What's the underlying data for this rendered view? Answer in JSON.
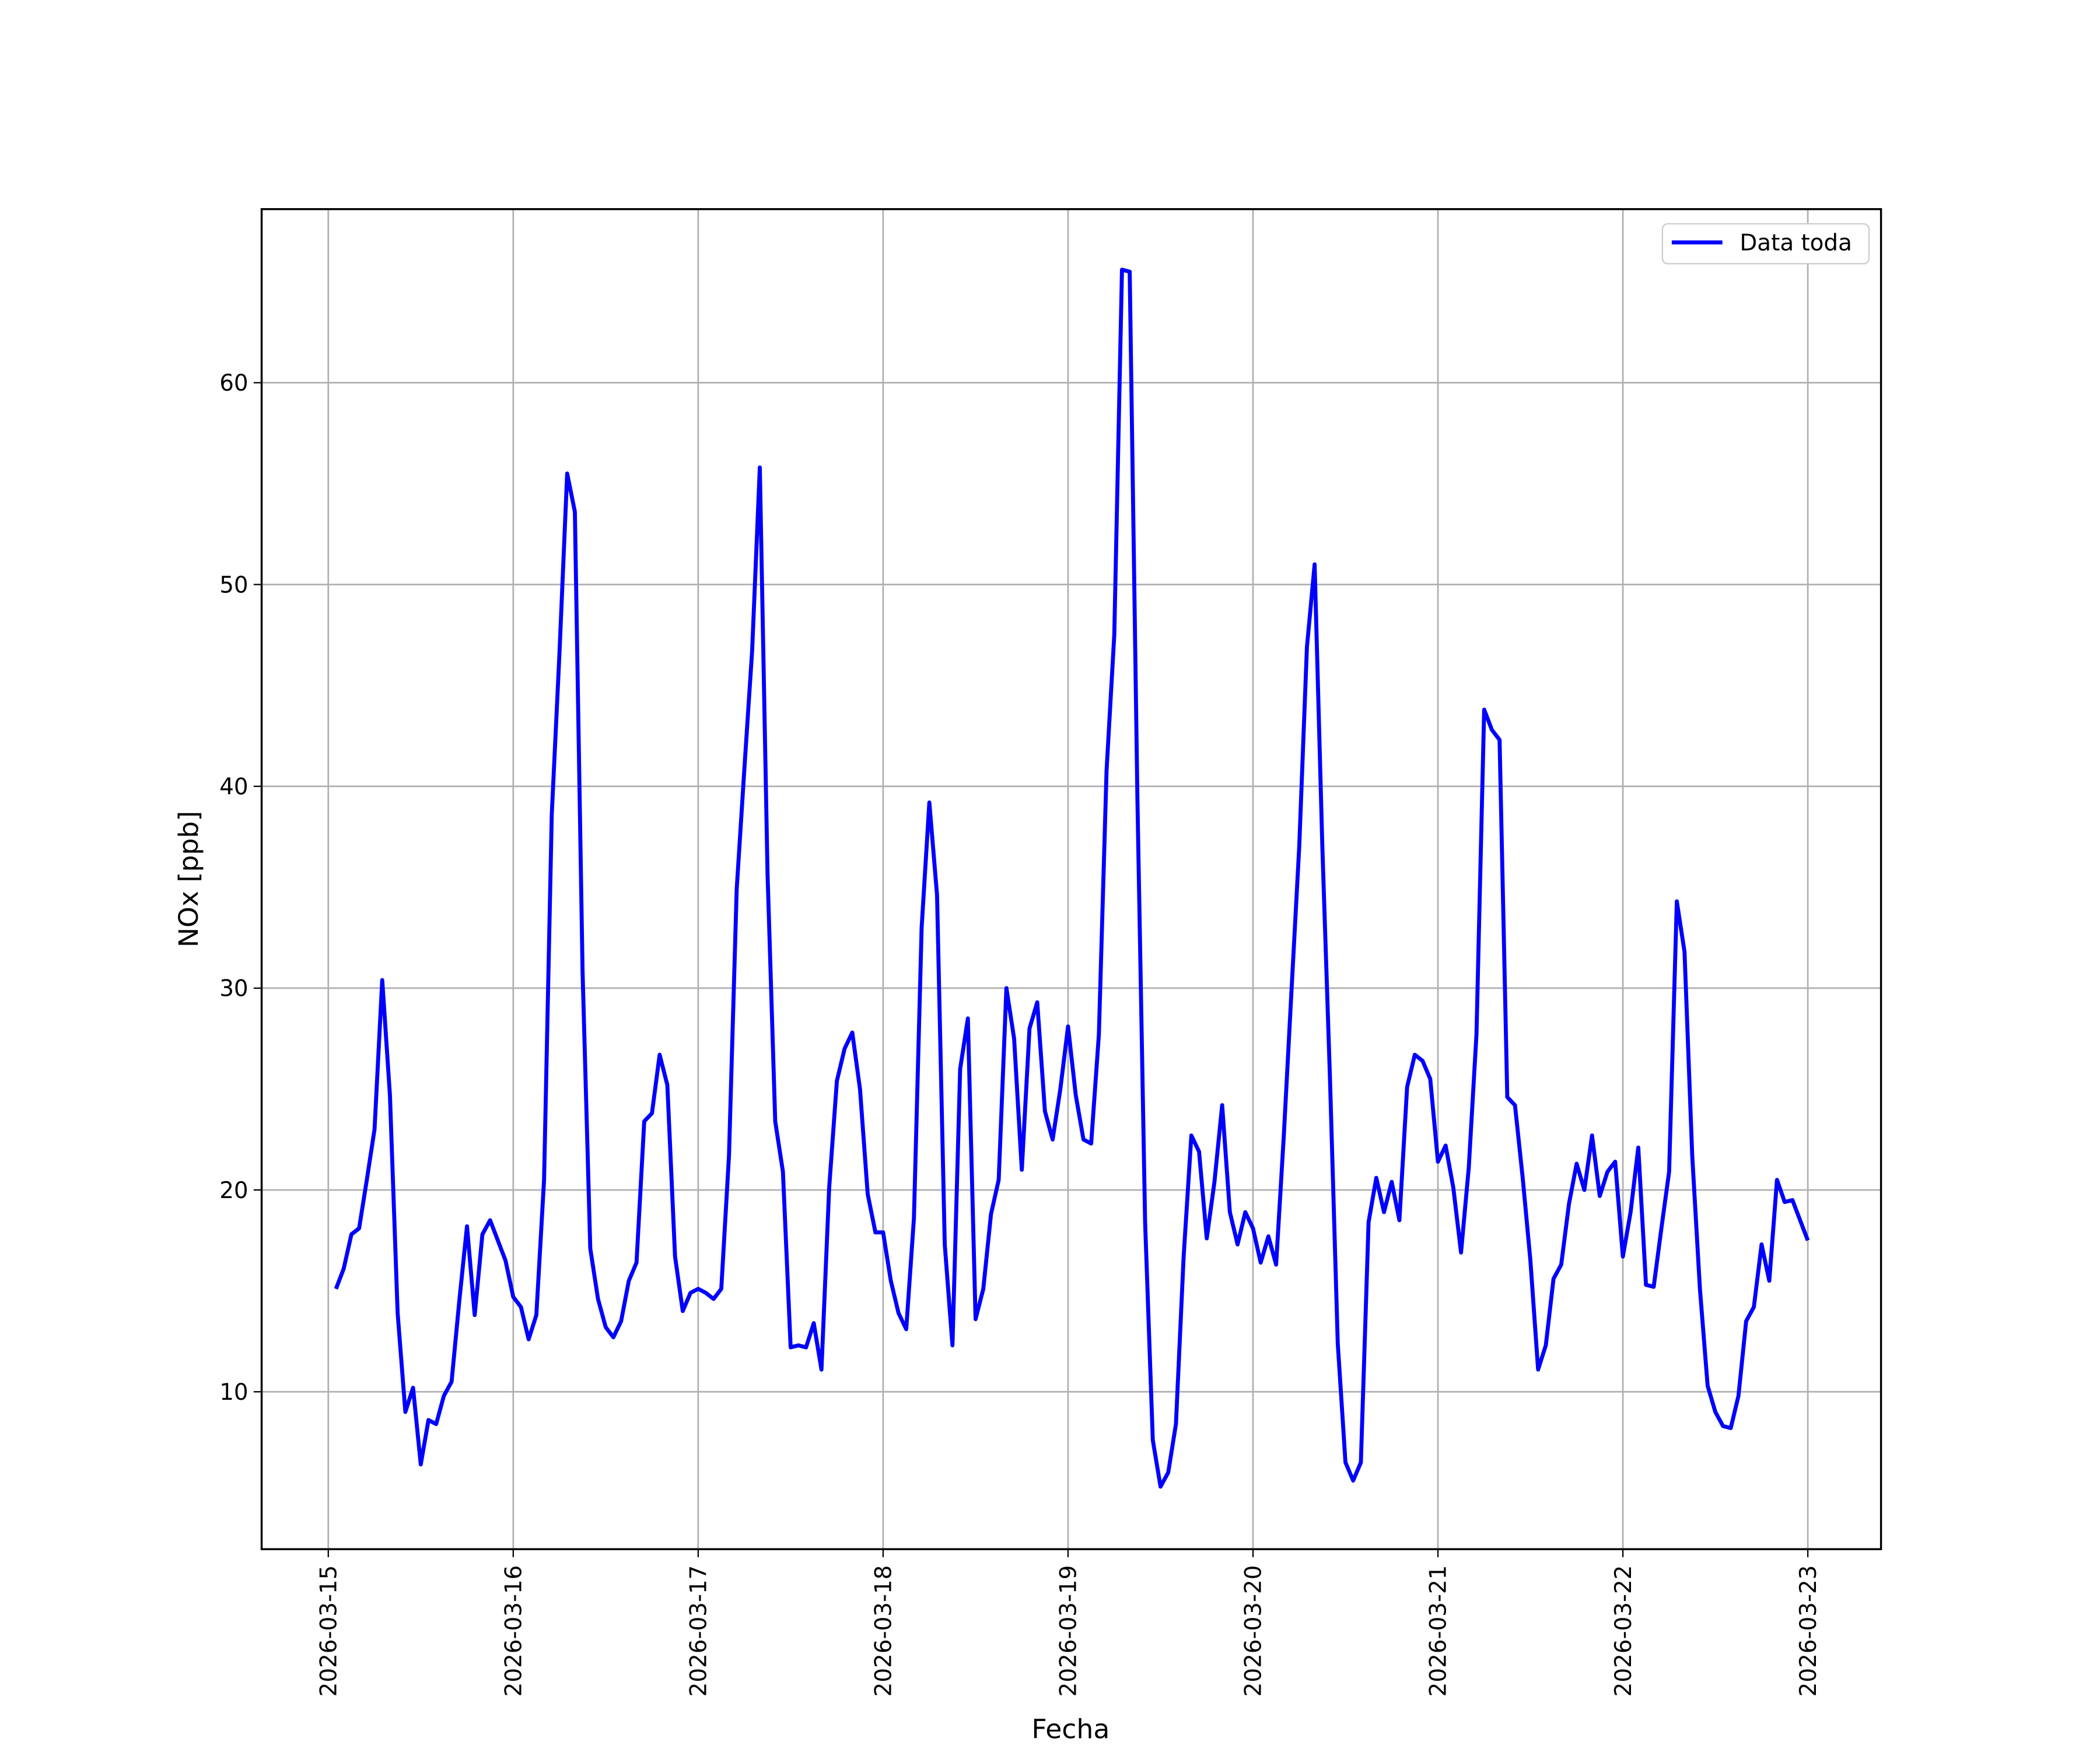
{
  "chart_data": {
    "type": "line",
    "x_label": "Fecha",
    "y_label": "NOx [ppb]",
    "x": [
      "2026-03-15 01:00",
      "2026-03-15 02:00",
      "2026-03-15 03:00",
      "2026-03-15 04:00",
      "2026-03-15 05:00",
      "2026-03-15 06:00",
      "2026-03-15 07:00",
      "2026-03-15 08:00",
      "2026-03-15 09:00",
      "2026-03-15 10:00",
      "2026-03-15 11:00",
      "2026-03-15 12:00",
      "2026-03-15 13:00",
      "2026-03-15 14:00",
      "2026-03-15 15:00",
      "2026-03-15 16:00",
      "2026-03-15 17:00",
      "2026-03-15 18:00",
      "2026-03-15 19:00",
      "2026-03-15 20:00",
      "2026-03-15 21:00",
      "2026-03-15 22:00",
      "2026-03-15 23:00",
      "2026-03-16 00:00",
      "2026-03-16 01:00",
      "2026-03-16 02:00",
      "2026-03-16 03:00",
      "2026-03-16 04:00",
      "2026-03-16 05:00",
      "2026-03-16 06:00",
      "2026-03-16 07:00",
      "2026-03-16 08:00",
      "2026-03-16 09:00",
      "2026-03-16 10:00",
      "2026-03-16 11:00",
      "2026-03-16 12:00",
      "2026-03-16 13:00",
      "2026-03-16 14:00",
      "2026-03-16 15:00",
      "2026-03-16 16:00",
      "2026-03-16 17:00",
      "2026-03-16 18:00",
      "2026-03-16 19:00",
      "2026-03-16 20:00",
      "2026-03-16 21:00",
      "2026-03-16 22:00",
      "2026-03-16 23:00",
      "2026-03-17 00:00",
      "2026-03-17 01:00",
      "2026-03-17 02:00",
      "2026-03-17 03:00",
      "2026-03-17 04:00",
      "2026-03-17 05:00",
      "2026-03-17 06:00",
      "2026-03-17 07:00",
      "2026-03-17 08:00",
      "2026-03-17 09:00",
      "2026-03-17 10:00",
      "2026-03-17 11:00",
      "2026-03-17 12:00",
      "2026-03-17 13:00",
      "2026-03-17 14:00",
      "2026-03-17 15:00",
      "2026-03-17 16:00",
      "2026-03-17 17:00",
      "2026-03-17 18:00",
      "2026-03-17 19:00",
      "2026-03-17 20:00",
      "2026-03-17 21:00",
      "2026-03-17 22:00",
      "2026-03-17 23:00",
      "2026-03-18 00:00",
      "2026-03-18 01:00",
      "2026-03-18 02:00",
      "2026-03-18 03:00",
      "2026-03-18 04:00",
      "2026-03-18 05:00",
      "2026-03-18 06:00",
      "2026-03-18 07:00",
      "2026-03-18 08:00",
      "2026-03-18 09:00",
      "2026-03-18 10:00",
      "2026-03-18 11:00",
      "2026-03-18 12:00",
      "2026-03-18 13:00",
      "2026-03-18 14:00",
      "2026-03-18 15:00",
      "2026-03-18 16:00",
      "2026-03-18 17:00",
      "2026-03-18 18:00",
      "2026-03-18 19:00",
      "2026-03-18 20:00",
      "2026-03-18 21:00",
      "2026-03-18 22:00",
      "2026-03-18 23:00",
      "2026-03-19 00:00",
      "2026-03-19 01:00",
      "2026-03-19 02:00",
      "2026-03-19 03:00",
      "2026-03-19 04:00",
      "2026-03-19 05:00",
      "2026-03-19 06:00",
      "2026-03-19 07:00",
      "2026-03-19 08:00",
      "2026-03-19 09:00",
      "2026-03-19 10:00",
      "2026-03-19 11:00",
      "2026-03-19 12:00",
      "2026-03-19 13:00",
      "2026-03-19 14:00",
      "2026-03-19 15:00",
      "2026-03-19 16:00",
      "2026-03-19 17:00",
      "2026-03-19 18:00",
      "2026-03-19 19:00",
      "2026-03-19 20:00",
      "2026-03-19 21:00",
      "2026-03-19 22:00",
      "2026-03-19 23:00",
      "2026-03-20 00:00",
      "2026-03-20 01:00",
      "2026-03-20 02:00",
      "2026-03-20 03:00",
      "2026-03-20 04:00",
      "2026-03-20 05:00",
      "2026-03-20 06:00",
      "2026-03-20 07:00",
      "2026-03-20 08:00",
      "2026-03-20 09:00",
      "2026-03-20 10:00",
      "2026-03-20 11:00",
      "2026-03-20 12:00",
      "2026-03-20 13:00",
      "2026-03-20 14:00",
      "2026-03-20 15:00",
      "2026-03-20 16:00",
      "2026-03-20 17:00",
      "2026-03-20 18:00",
      "2026-03-20 19:00",
      "2026-03-20 20:00",
      "2026-03-20 21:00",
      "2026-03-20 22:00",
      "2026-03-20 23:00",
      "2026-03-21 00:00",
      "2026-03-21 01:00",
      "2026-03-21 02:00",
      "2026-03-21 03:00",
      "2026-03-21 04:00",
      "2026-03-21 05:00",
      "2026-03-21 06:00",
      "2026-03-21 07:00",
      "2026-03-21 08:00",
      "2026-03-21 09:00",
      "2026-03-21 10:00",
      "2026-03-21 11:00",
      "2026-03-21 12:00",
      "2026-03-21 13:00",
      "2026-03-21 14:00",
      "2026-03-21 15:00",
      "2026-03-21 16:00",
      "2026-03-21 17:00",
      "2026-03-21 18:00",
      "2026-03-21 19:00",
      "2026-03-21 20:00",
      "2026-03-21 21:00",
      "2026-03-21 22:00",
      "2026-03-21 23:00",
      "2026-03-22 00:00",
      "2026-03-22 01:00",
      "2026-03-22 02:00",
      "2026-03-22 03:00",
      "2026-03-22 04:00",
      "2026-03-22 05:00",
      "2026-03-22 06:00",
      "2026-03-22 07:00",
      "2026-03-22 08:00",
      "2026-03-22 09:00",
      "2026-03-22 10:00",
      "2026-03-22 11:00",
      "2026-03-22 12:00",
      "2026-03-22 13:00",
      "2026-03-22 14:00",
      "2026-03-22 15:00",
      "2026-03-22 16:00",
      "2026-03-22 17:00",
      "2026-03-22 18:00",
      "2026-03-22 19:00",
      "2026-03-22 20:00",
      "2026-03-22 21:00",
      "2026-03-22 22:00",
      "2026-03-22 23:00",
      "2026-03-23 00:00"
    ],
    "series": [
      {
        "name": "Data toda",
        "color": "#0000ff",
        "values": [
          15.1,
          16.1,
          17.8,
          18.1,
          20.5,
          23.0,
          30.4,
          24.7,
          13.9,
          9.0,
          10.2,
          6.4,
          8.6,
          8.4,
          9.8,
          10.5,
          14.5,
          18.2,
          13.8,
          17.8,
          18.5,
          17.5,
          16.5,
          14.7,
          14.2,
          12.6,
          13.8,
          20.5,
          38.6,
          46.6,
          55.5,
          53.6,
          30.8,
          17.1,
          14.6,
          13.2,
          12.7,
          13.5,
          15.5,
          16.4,
          23.4,
          23.8,
          26.7,
          25.2,
          16.7,
          14.0,
          14.9,
          15.1,
          14.9,
          14.6,
          15.1,
          21.7,
          34.9,
          40.9,
          46.7,
          55.8,
          35.7,
          23.4,
          20.9,
          12.2,
          12.3,
          12.2,
          13.4,
          11.1,
          20.1,
          25.4,
          27.0,
          27.8,
          25.0,
          19.8,
          17.9,
          17.9,
          15.5,
          13.9,
          13.1,
          18.6,
          33.0,
          39.2,
          34.6,
          17.3,
          12.3,
          26.0,
          28.5,
          13.6,
          15.1,
          18.8,
          20.5,
          30.0,
          27.5,
          21.0,
          28.0,
          29.3,
          23.9,
          22.5,
          25.0,
          28.1,
          24.7,
          22.5,
          22.3,
          27.7,
          40.8,
          47.5,
          65.6,
          65.5,
          39.4,
          18.4,
          7.6,
          5.3,
          6.0,
          8.4,
          16.7,
          22.7,
          21.9,
          17.6,
          20.4,
          24.2,
          18.9,
          17.3,
          18.9,
          18.1,
          16.4,
          17.7,
          16.3,
          22.7,
          29.9,
          37.0,
          46.9,
          51.0,
          37.0,
          25.4,
          12.4,
          6.5,
          5.6,
          6.5,
          18.4,
          20.6,
          18.9,
          20.4,
          18.5,
          25.1,
          26.7,
          26.4,
          25.5,
          21.4,
          22.2,
          20.1,
          16.9,
          21.1,
          27.7,
          43.8,
          42.8,
          42.3,
          24.6,
          24.2,
          20.6,
          16.5,
          11.1,
          12.3,
          15.6,
          16.3,
          19.3,
          21.3,
          20.0,
          22.7,
          19.7,
          20.9,
          21.4,
          16.7,
          18.9,
          22.1,
          15.3,
          15.2,
          18.1,
          20.9,
          34.3,
          31.8,
          21.7,
          15.1,
          10.3,
          9.0,
          8.3,
          8.2,
          9.8,
          13.5,
          14.2,
          17.3,
          15.5,
          20.5,
          19.4,
          19.5,
          18.5,
          17.5
        ]
      }
    ],
    "xlim": [
      "2026-03-14 15:21",
      "2026-03-23 09:30"
    ],
    "xticks": [
      "2026-03-15",
      "2026-03-16",
      "2026-03-17",
      "2026-03-18",
      "2026-03-19",
      "2026-03-20",
      "2026-03-21",
      "2026-03-22",
      "2026-03-23"
    ],
    "ylim": [
      2.2,
      68.6
    ],
    "yticks": [
      10,
      20,
      30,
      40,
      50,
      60
    ],
    "grid": true,
    "legend": "upper right"
  }
}
